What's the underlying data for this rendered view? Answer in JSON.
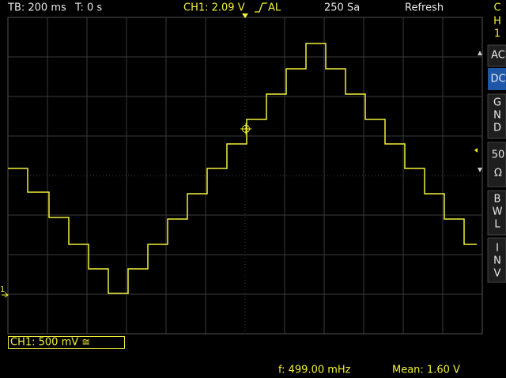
{
  "header": {
    "timebase": "TB: 200 ms",
    "trigger_time": "T: 0 s",
    "channel_trigger": "CH1: 2.09 V",
    "trigger_mode": "AL",
    "sample_rate": "250 Sa",
    "acquisition": "Refresh"
  },
  "side_panel": {
    "channel": [
      "C",
      "H",
      "1"
    ],
    "buttons": [
      [
        "AC"
      ],
      [
        "DC"
      ],
      [
        "G",
        "N",
        "D"
      ],
      [
        "50",
        "Ω"
      ],
      [
        "B",
        "W",
        "L"
      ],
      [
        "I",
        "N",
        "V"
      ]
    ]
  },
  "ground_marker": "1",
  "channel_scale": "CH1: 500 mV ≅",
  "status": {
    "frequency": "f: 499.00 mHz",
    "mean": "Mean: 1.60 V"
  }
}
